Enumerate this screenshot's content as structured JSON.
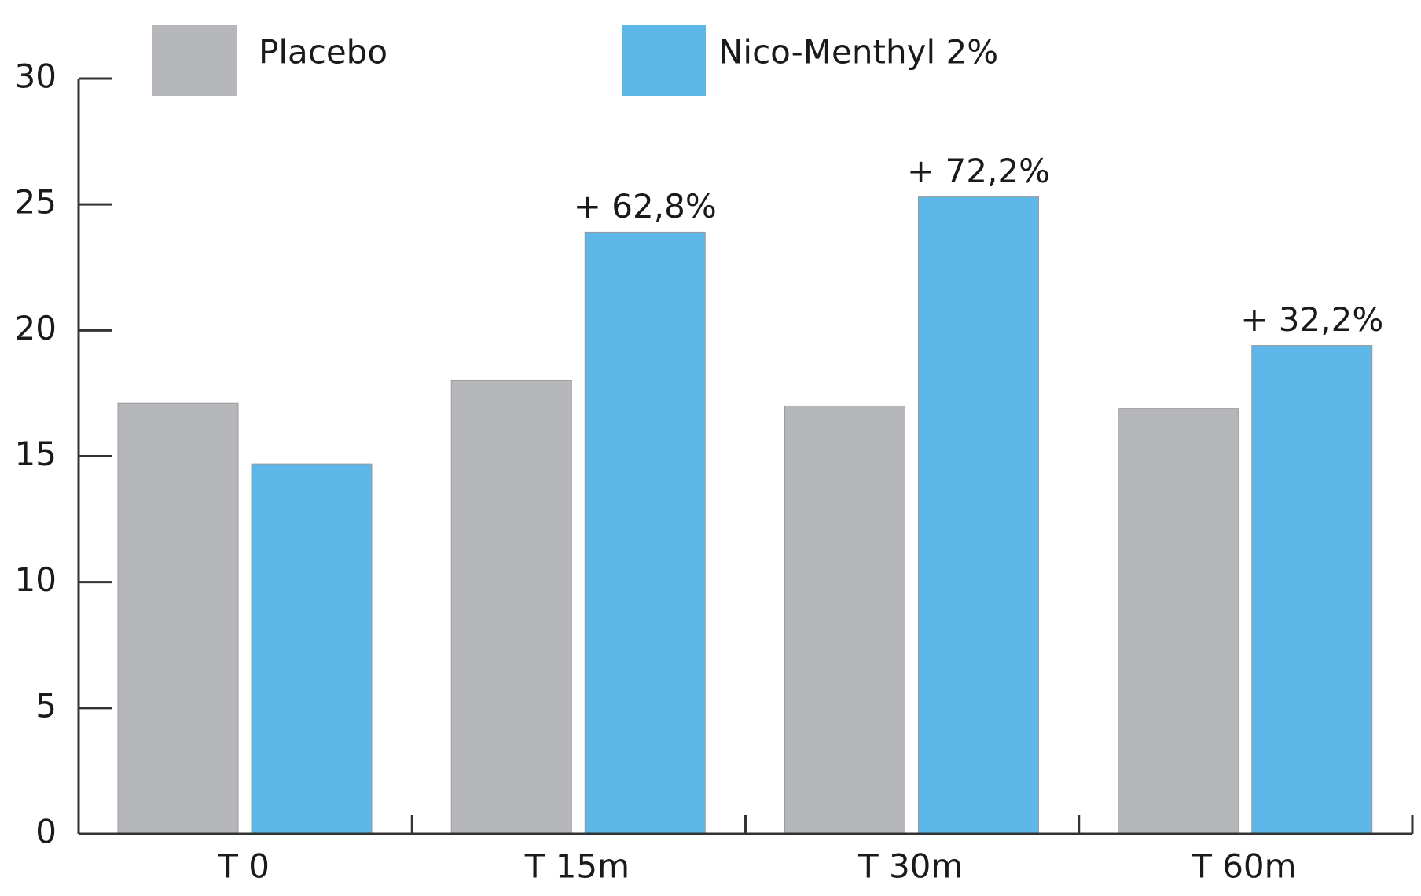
{
  "chart_data": {
    "type": "bar",
    "categories": [
      "T 0",
      "T 15m",
      "T 30m",
      "T 60m"
    ],
    "series": [
      {
        "name": "Placebo",
        "color": "#b6b7ba",
        "values": [
          17.1,
          18.0,
          17.0,
          16.9
        ]
      },
      {
        "name": "Nico-Menthyl 2%",
        "color": "#5db7e8",
        "values": [
          14.7,
          23.9,
          25.3,
          19.4
        ]
      }
    ],
    "annotations": [
      "+ 62,8%",
      "+ 72,2%",
      "+ 32,2%"
    ],
    "ylim": [
      0,
      30
    ],
    "yticks": [
      0,
      5,
      10,
      15,
      20,
      25,
      30
    ],
    "grid": false
  }
}
